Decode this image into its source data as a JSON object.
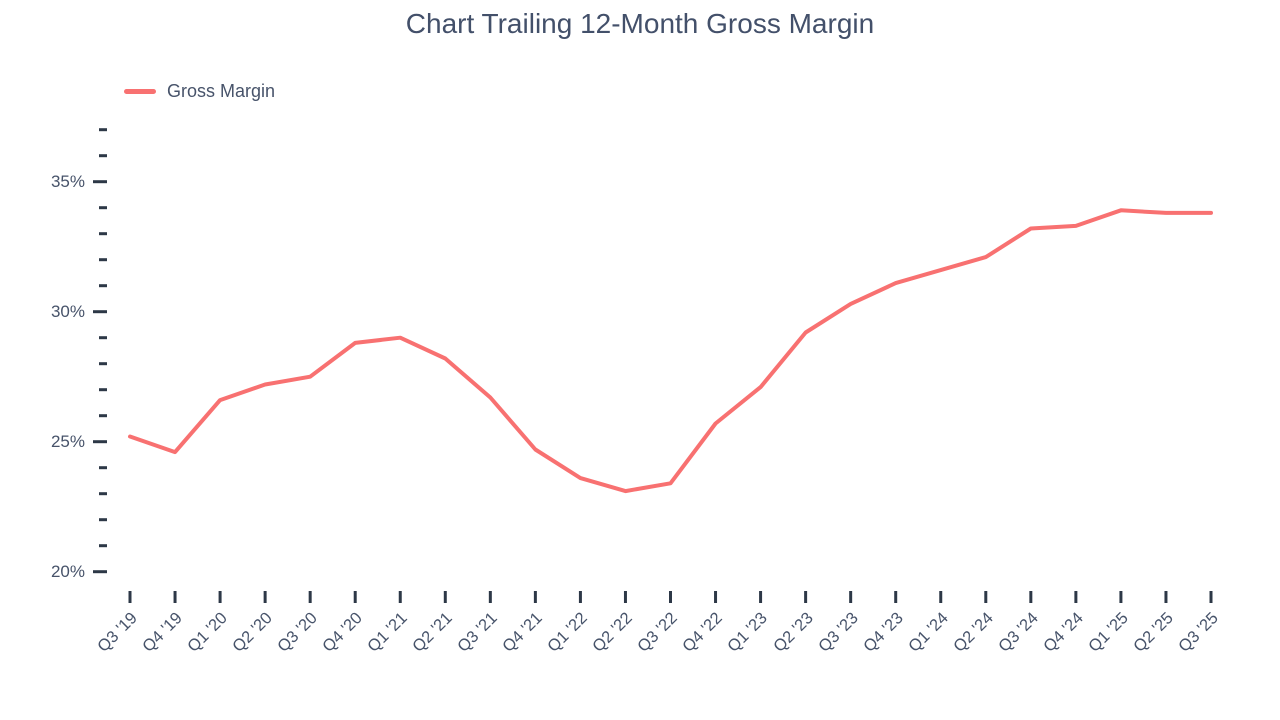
{
  "title": "Chart Trailing 12-Month Gross Margin",
  "legend": {
    "items": [
      {
        "label": "Gross Margin",
        "color": "#f87171"
      }
    ]
  },
  "colors": {
    "line": "#f87171",
    "text": "#47536a",
    "tick": "#2d3847",
    "background": "#ffffff"
  },
  "chart_data": {
    "type": "line",
    "title": "Chart Trailing 12-Month Gross Margin",
    "categories": [
      "Q3 '19",
      "Q4 '19",
      "Q1 '20",
      "Q2 '20",
      "Q3 '20",
      "Q4 '20",
      "Q1 '21",
      "Q2 '21",
      "Q3 '21",
      "Q4 '21",
      "Q1 '22",
      "Q2 '22",
      "Q3 '22",
      "Q4 '22",
      "Q1 '23",
      "Q2 '23",
      "Q3 '23",
      "Q4 '23",
      "Q1 '24",
      "Q2 '24",
      "Q3 '24",
      "Q4 '24",
      "Q1 '25",
      "Q2 '25",
      "Q3 '25"
    ],
    "series": [
      {
        "name": "Gross Margin",
        "color": "#f87171",
        "values": [
          25.2,
          24.6,
          26.6,
          27.2,
          27.5,
          28.8,
          29.0,
          28.2,
          26.7,
          24.7,
          23.6,
          23.1,
          23.4,
          25.7,
          27.1,
          29.2,
          30.3,
          31.1,
          31.6,
          32.1,
          33.2,
          33.3,
          33.9,
          33.8,
          33.8
        ]
      }
    ],
    "xlabel": "",
    "ylabel": "",
    "ylim": [
      20,
      37
    ],
    "ytick_major": [
      35,
      30,
      25,
      20
    ],
    "ytick_minor_step": 1,
    "ytick_suffix": "%",
    "grid": false,
    "legend_position": "top-left",
    "x_tick_angle": -45
  }
}
